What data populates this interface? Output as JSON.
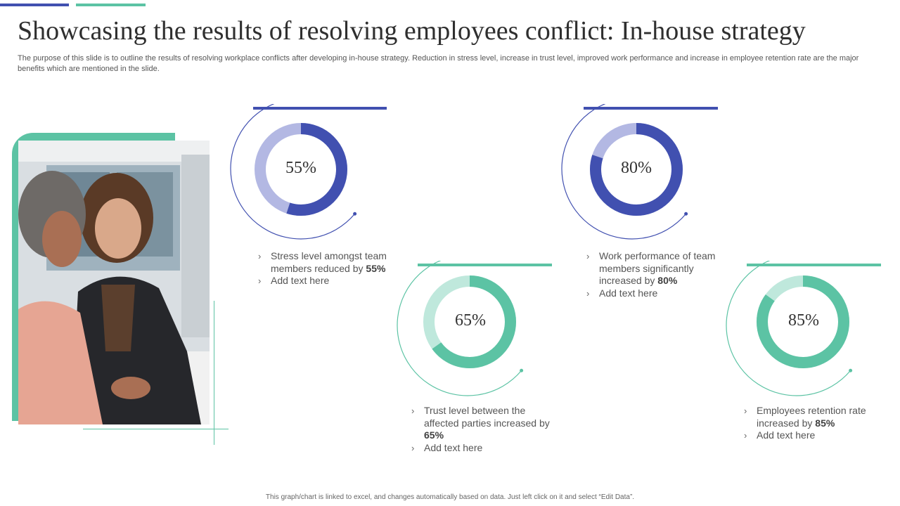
{
  "title": "Showcasing the results of resolving employees conflict: In-house strategy",
  "subtitle": "The purpose of this slide is to outline the results of resolving workplace conflicts after developing in-house strategy. Reduction in stress level, increase in trust level, improved work performance and increase in employee retention rate are the major benefits which are mentioned in the slide.",
  "colors": {
    "blue": "#4150b0",
    "blue_light": "#b3b8e3",
    "green": "#5cc3a4",
    "green_light": "#bfe8dc"
  },
  "photo": {
    "icon": "photo-two-women-at-desk"
  },
  "stats": [
    {
      "value": 55,
      "label": "55%",
      "text_before": "Stress level amongst team members reduced by ",
      "highlight": "55%",
      "add_text": "Add text here",
      "color": "blue"
    },
    {
      "value": 65,
      "label": "65%",
      "text_before": "Trust level between the affected parties increased by ",
      "highlight": "65%",
      "add_text": "Add text here",
      "color": "green"
    },
    {
      "value": 80,
      "label": "80%",
      "text_before": "Work performance of team members significantly increased by ",
      "highlight": "80%",
      "add_text": "Add text here",
      "color": "blue"
    },
    {
      "value": 85,
      "label": "85%",
      "text_before": "Employees retention rate increased by ",
      "highlight": "85%",
      "add_text": "Add text here",
      "color": "green"
    }
  ],
  "bullet_icon": "chevron-right-icon",
  "bullet_glyph": "›",
  "footer": "This graph/chart is linked to excel, and changes automatically based on data. Just left click on it and select “Edit Data”."
}
